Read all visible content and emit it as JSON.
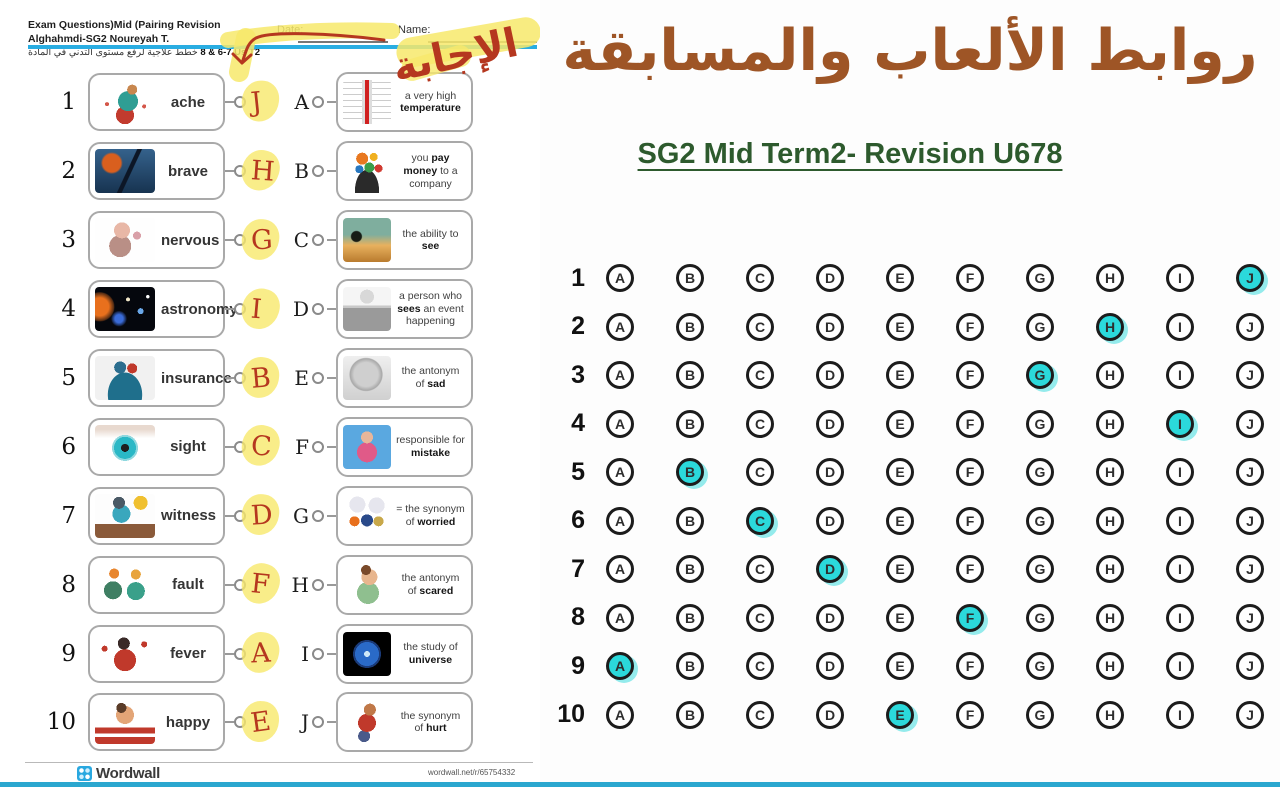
{
  "colors": {
    "highlight_cyan": "#2BD9DB",
    "highlighter_yellow": "#F7E96B",
    "pen_red": "#B5371F",
    "divider_blue": "#29ADE2",
    "title_brown": "#9E5526",
    "subtitle_green": "#2D5A2D"
  },
  "worksheet": {
    "header": {
      "title_line1": "Exam Questions)Mid (Pairing Revision Alghahmdi-SG2 Noureyah T.",
      "title_line2_latin": "8 & 6-7 Us T2",
      "title_line2_arabic": "خطط علاجية لرفع مستوى التدني في المادة",
      "date_label": "Date:",
      "name_label": "Name:",
      "handwritten_note": "الإجابة"
    },
    "items": [
      {
        "num": "1",
        "word": "ache",
        "answer": "J",
        "image": "man-clutching-stomach"
      },
      {
        "num": "2",
        "word": "brave",
        "answer": "H",
        "image": "archer-girl"
      },
      {
        "num": "3",
        "word": "nervous",
        "answer": "G",
        "image": "nervous-cartoon"
      },
      {
        "num": "4",
        "word": "astronomy",
        "answer": "I",
        "image": "solar-system"
      },
      {
        "num": "5",
        "word": "insurance",
        "answer": "B",
        "image": "hands-protecting-house-money"
      },
      {
        "num": "6",
        "word": "sight",
        "answer": "C",
        "image": "eye-closeup"
      },
      {
        "num": "7",
        "word": "witness",
        "answer": "D",
        "image": "person-at-witness-stand"
      },
      {
        "num": "8",
        "word": "fault",
        "answer": "F",
        "image": "kids-pointing-blame"
      },
      {
        "num": "9",
        "word": "fever",
        "answer": "A",
        "image": "woman-holding-head"
      },
      {
        "num": "10",
        "word": "happy",
        "answer": "E",
        "image": "laughing-boy"
      }
    ],
    "definitions": [
      {
        "letter": "A",
        "image": "thermometer",
        "segments": [
          {
            "t": "a very high ",
            "b": false
          },
          {
            "t": "temperature",
            "b": true
          }
        ]
      },
      {
        "letter": "B",
        "image": "hands-with-icons",
        "segments": [
          {
            "t": "you ",
            "b": false
          },
          {
            "t": "pay money",
            "b": true
          },
          {
            "t": " to a company",
            "b": false
          }
        ]
      },
      {
        "letter": "C",
        "image": "person-in-field",
        "segments": [
          {
            "t": "the ability to ",
            "b": false
          },
          {
            "t": "see",
            "b": true
          }
        ]
      },
      {
        "letter": "D",
        "image": "witness-box",
        "segments": [
          {
            "t": "a person who ",
            "b": false
          },
          {
            "t": "sees",
            "b": true
          },
          {
            "t": " an event happening",
            "b": false
          }
        ]
      },
      {
        "letter": "E",
        "image": "crying-baby",
        "segments": [
          {
            "t": "the antonym of ",
            "b": false
          },
          {
            "t": "sad",
            "b": true
          }
        ]
      },
      {
        "letter": "F",
        "image": "woman-being-blamed",
        "segments": [
          {
            "t": "responsible for ",
            "b": false
          },
          {
            "t": "mistake",
            "b": true
          }
        ]
      },
      {
        "letter": "G",
        "image": "worried-family",
        "segments": [
          {
            "t": "= the synonym of ",
            "b": false
          },
          {
            "t": "worried",
            "b": true
          }
        ]
      },
      {
        "letter": "H",
        "image": "scared-boy",
        "segments": [
          {
            "t": "the antonym of ",
            "b": false
          },
          {
            "t": "scared",
            "b": true
          }
        ]
      },
      {
        "letter": "I",
        "image": "planet-earth",
        "segments": [
          {
            "t": "the study of ",
            "b": false
          },
          {
            "t": "universe",
            "b": true
          }
        ]
      },
      {
        "letter": "J",
        "image": "hurt-boy",
        "segments": [
          {
            "t": "the synonym of ",
            "b": false
          },
          {
            "t": "hurt",
            "b": true
          }
        ]
      }
    ],
    "footer": {
      "brand": "Wordwall",
      "url": "wordwall.net/r/65754332"
    }
  },
  "panel": {
    "title_arabic": "روابط الألعاب والمسابقة",
    "subtitle": "SG2 Mid Term2- Revision U678",
    "grid": {
      "columns": [
        "A",
        "B",
        "C",
        "D",
        "E",
        "F",
        "G",
        "H",
        "I",
        "J"
      ],
      "rows": [
        {
          "num": "1",
          "selected": "J"
        },
        {
          "num": "2",
          "selected": "H"
        },
        {
          "num": "3",
          "selected": "G"
        },
        {
          "num": "4",
          "selected": "I"
        },
        {
          "num": "5",
          "selected": "B"
        },
        {
          "num": "6",
          "selected": "C"
        },
        {
          "num": "7",
          "selected": "D"
        },
        {
          "num": "8",
          "selected": "F"
        },
        {
          "num": "9",
          "selected": "A"
        },
        {
          "num": "10",
          "selected": "E"
        }
      ]
    }
  }
}
